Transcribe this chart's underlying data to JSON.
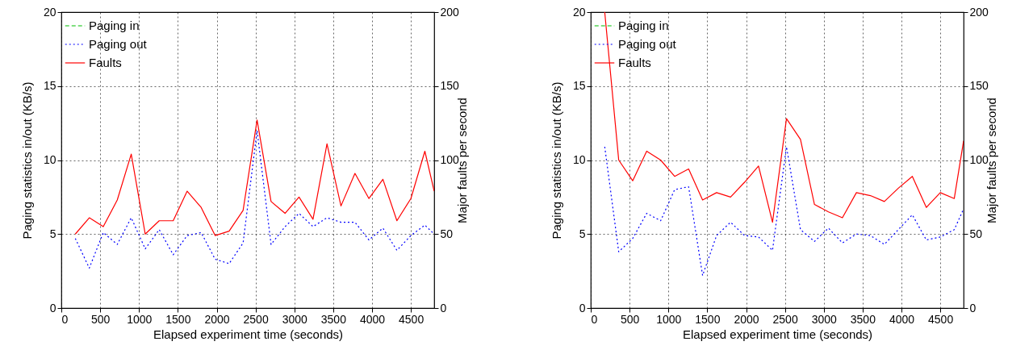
{
  "chart_data": [
    {
      "type": "line",
      "xlabel": "Elapsed experiment time (seconds)",
      "ylabel": "Paging statistics in/out (KB/s)",
      "y2label": "Major faults per second",
      "x": [
        180,
        360,
        540,
        720,
        900,
        1080,
        1260,
        1440,
        1620,
        1800,
        1980,
        2160,
        2340,
        2520,
        2700,
        2880,
        3060,
        3240,
        3420,
        3600,
        3780,
        3960,
        4140,
        4320,
        4500,
        4680,
        4800
      ],
      "xlim": [
        0,
        4800
      ],
      "xticks": [
        0,
        500,
        1000,
        1500,
        2000,
        2500,
        3000,
        3500,
        4000,
        4500
      ],
      "ylim": [
        0,
        20
      ],
      "yticks": [
        0,
        5,
        10,
        15,
        20
      ],
      "y2lim": [
        0,
        200
      ],
      "y2ticks": [
        0,
        50,
        100,
        150,
        200
      ],
      "grid": true,
      "legend": "top left",
      "series": [
        {
          "name": "Paging in",
          "color": "#00c000",
          "line_style": "dashed",
          "values": [
            null,
            null,
            null,
            null,
            null,
            null,
            null,
            null,
            null,
            null,
            null,
            null,
            null,
            null,
            null,
            null,
            null,
            null,
            null,
            null,
            null,
            null,
            null,
            null,
            null,
            null,
            null
          ]
        },
        {
          "name": "Paging out",
          "color": "#0000ff",
          "line_style": "dotted",
          "values": [
            4.7,
            2.7,
            5.1,
            4.3,
            6.1,
            4.0,
            5.3,
            3.6,
            4.9,
            5.1,
            3.3,
            3.0,
            4.4,
            12.0,
            4.3,
            5.5,
            6.4,
            5.5,
            6.1,
            5.8,
            5.8,
            4.6,
            5.4,
            3.9,
            4.9,
            5.6,
            5.0
          ]
        },
        {
          "name": "Faults",
          "color": "#ff0000",
          "line_style": "solid",
          "axis": "y2",
          "values": [
            50,
            61,
            55,
            73,
            104,
            50,
            59,
            59,
            79,
            68,
            49,
            52,
            66,
            127,
            72,
            64,
            75,
            60,
            111,
            69,
            91,
            74,
            87,
            59,
            74,
            106,
            79
          ]
        }
      ]
    },
    {
      "type": "line",
      "xlabel": "Elapsed experiment time (seconds)",
      "ylabel": "Paging statistics in/out (KB/s)",
      "y2label": "Major faults per second",
      "x": [
        180,
        360,
        540,
        720,
        900,
        1080,
        1260,
        1440,
        1620,
        1800,
        1980,
        2160,
        2340,
        2520,
        2700,
        2880,
        3060,
        3240,
        3420,
        3600,
        3780,
        3960,
        4140,
        4320,
        4500,
        4680,
        4800
      ],
      "xlim": [
        0,
        4800
      ],
      "xticks": [
        0,
        500,
        1000,
        1500,
        2000,
        2500,
        3000,
        3500,
        4000,
        4500
      ],
      "ylim": [
        0,
        20
      ],
      "yticks": [
        0,
        5,
        10,
        15,
        20
      ],
      "y2lim": [
        0,
        200
      ],
      "y2ticks": [
        0,
        50,
        100,
        150,
        200
      ],
      "grid": true,
      "legend": "top left",
      "series": [
        {
          "name": "Paging in",
          "color": "#00c000",
          "line_style": "dashed",
          "values": [
            null,
            null,
            null,
            null,
            null,
            null,
            null,
            null,
            null,
            null,
            null,
            null,
            null,
            null,
            null,
            null,
            null,
            null,
            null,
            null,
            null,
            null,
            null,
            null,
            null,
            null,
            null
          ]
        },
        {
          "name": "Paging out",
          "color": "#0000ff",
          "line_style": "dotted",
          "values": [
            10.9,
            3.8,
            4.7,
            6.4,
            5.9,
            8.0,
            8.2,
            2.2,
            4.9,
            5.8,
            4.9,
            4.8,
            3.9,
            10.9,
            5.3,
            4.5,
            5.4,
            4.4,
            5.0,
            4.9,
            4.3,
            5.3,
            6.3,
            4.6,
            4.8,
            5.3,
            6.7
          ]
        },
        {
          "name": "Faults",
          "color": "#ff0000",
          "line_style": "solid",
          "axis": "y2",
          "values": [
            200,
            100,
            86,
            106,
            100,
            89,
            94,
            73,
            78,
            75,
            85,
            96,
            58,
            128,
            114,
            70,
            65,
            61,
            78,
            76,
            72,
            81,
            89,
            68,
            78,
            74,
            113
          ]
        }
      ]
    }
  ]
}
